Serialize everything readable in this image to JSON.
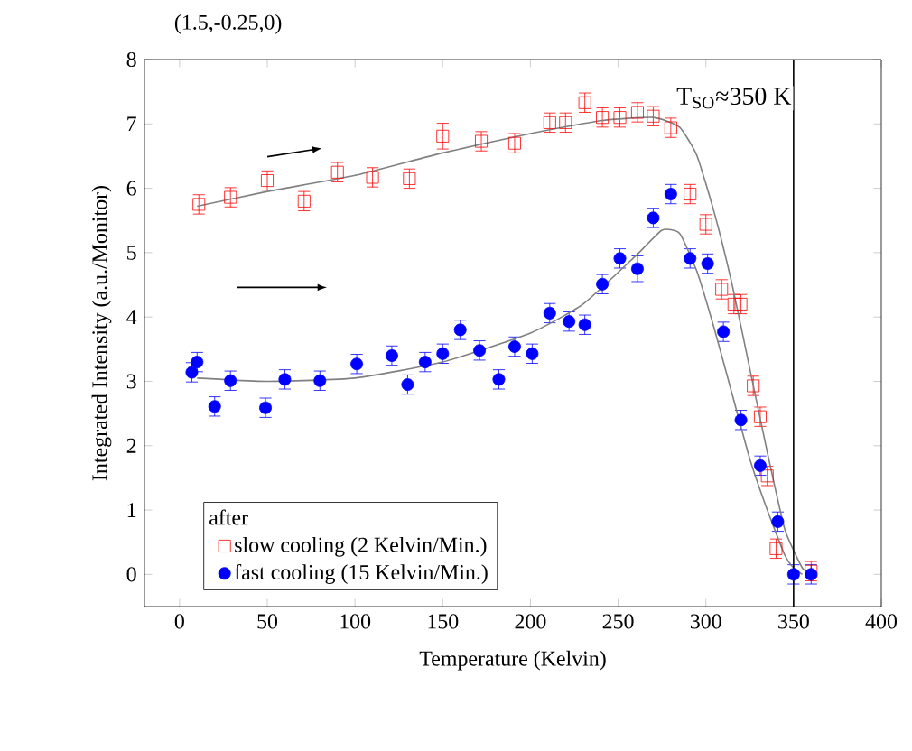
{
  "chart_data": {
    "type": "scatter",
    "title": "(1.5,-0.25,0)",
    "xlabel": "Temperature  (Kelvin)",
    "ylabel": "Integrated Intensity (a.u./Monitor)",
    "legend_title": "after",
    "series": [
      {
        "name": "slow cooling (2 Kelvin/Min.)",
        "color": "#ff0000",
        "marker": "square",
        "x": [
          11,
          29,
          50,
          71,
          90,
          110,
          131,
          150,
          172,
          191,
          211,
          220,
          231,
          241,
          251,
          261,
          270,
          280,
          291,
          300,
          309,
          316,
          320,
          327,
          331,
          335,
          340,
          360
        ],
        "values": [
          5.75,
          5.86,
          6.12,
          5.8,
          6.25,
          6.17,
          6.15,
          6.81,
          6.73,
          6.7,
          7.02,
          7.02,
          7.33,
          7.1,
          7.1,
          7.18,
          7.12,
          6.94,
          5.91,
          5.44,
          4.43,
          4.2,
          4.2,
          2.93,
          2.45,
          1.53,
          0.4,
          0.05
        ],
        "errors": [
          0.15,
          0.15,
          0.15,
          0.15,
          0.15,
          0.15,
          0.15,
          0.2,
          0.15,
          0.15,
          0.15,
          0.15,
          0.15,
          0.15,
          0.15,
          0.15,
          0.15,
          0.15,
          0.15,
          0.15,
          0.15,
          0.15,
          0.15,
          0.15,
          0.15,
          0.15,
          0.15,
          0.15
        ]
      },
      {
        "name": "fast cooling   (15 Kelvin/Min.)",
        "color": "#0000ff",
        "marker": "circle",
        "x": [
          7,
          10,
          20,
          29,
          49,
          60,
          80,
          101,
          121,
          130,
          140,
          150,
          160,
          171,
          182,
          191,
          201,
          211,
          222,
          231,
          241,
          251,
          261,
          270,
          280,
          291,
          301,
          310,
          320,
          331,
          341,
          350,
          360
        ],
        "values": [
          3.14,
          3.3,
          2.61,
          3.01,
          2.59,
          3.03,
          3.01,
          3.27,
          3.4,
          2.95,
          3.3,
          3.43,
          3.8,
          3.48,
          3.03,
          3.54,
          3.43,
          4.06,
          3.93,
          3.88,
          4.51,
          4.91,
          4.75,
          5.54,
          5.91,
          4.91,
          4.83,
          3.77,
          2.4,
          1.69,
          0.82,
          0.0,
          0.0
        ],
        "errors": [
          0.15,
          0.15,
          0.15,
          0.15,
          0.15,
          0.15,
          0.15,
          0.15,
          0.15,
          0.15,
          0.15,
          0.15,
          0.15,
          0.15,
          0.15,
          0.15,
          0.15,
          0.15,
          0.15,
          0.15,
          0.15,
          0.15,
          0.2,
          0.15,
          0.15,
          0.15,
          0.15,
          0.15,
          0.15,
          0.15,
          0.15,
          0.15,
          0.15
        ]
      },
      {
        "type": "line",
        "color": "#808080",
        "x": [
          10,
          50,
          100,
          150,
          200,
          240,
          270,
          285,
          295,
          305,
          315,
          325,
          335,
          345,
          355,
          360
        ],
        "values": [
          5.72,
          5.95,
          6.2,
          6.55,
          6.85,
          7.05,
          7.1,
          6.95,
          6.5,
          5.6,
          4.5,
          3.2,
          1.9,
          0.7,
          0.1,
          0.05
        ]
      },
      {
        "type": "line",
        "color": "#808080",
        "x": [
          10,
          50,
          100,
          150,
          200,
          230,
          260,
          275,
          285,
          295,
          305,
          315,
          325,
          335,
          345,
          350,
          355
        ],
        "values": [
          3.05,
          3.0,
          3.05,
          3.3,
          3.75,
          4.2,
          4.95,
          5.35,
          5.3,
          4.7,
          3.8,
          2.8,
          1.8,
          1.0,
          0.3,
          0.1,
          0.0
        ]
      }
    ],
    "ref_lines": [
      {
        "axis": "x",
        "value": 350,
        "label": "T$_{SO}$≈350 K",
        "color": "#000000"
      }
    ],
    "xlim": [
      -20,
      400
    ],
    "ylim": [
      -0.5,
      8
    ],
    "xticks": [
      0,
      50,
      100,
      150,
      200,
      250,
      300,
      350,
      400
    ],
    "yticks": [
      0,
      1,
      2,
      3,
      4,
      5,
      6,
      7,
      8
    ],
    "grid": false,
    "legend": "bottom left"
  }
}
